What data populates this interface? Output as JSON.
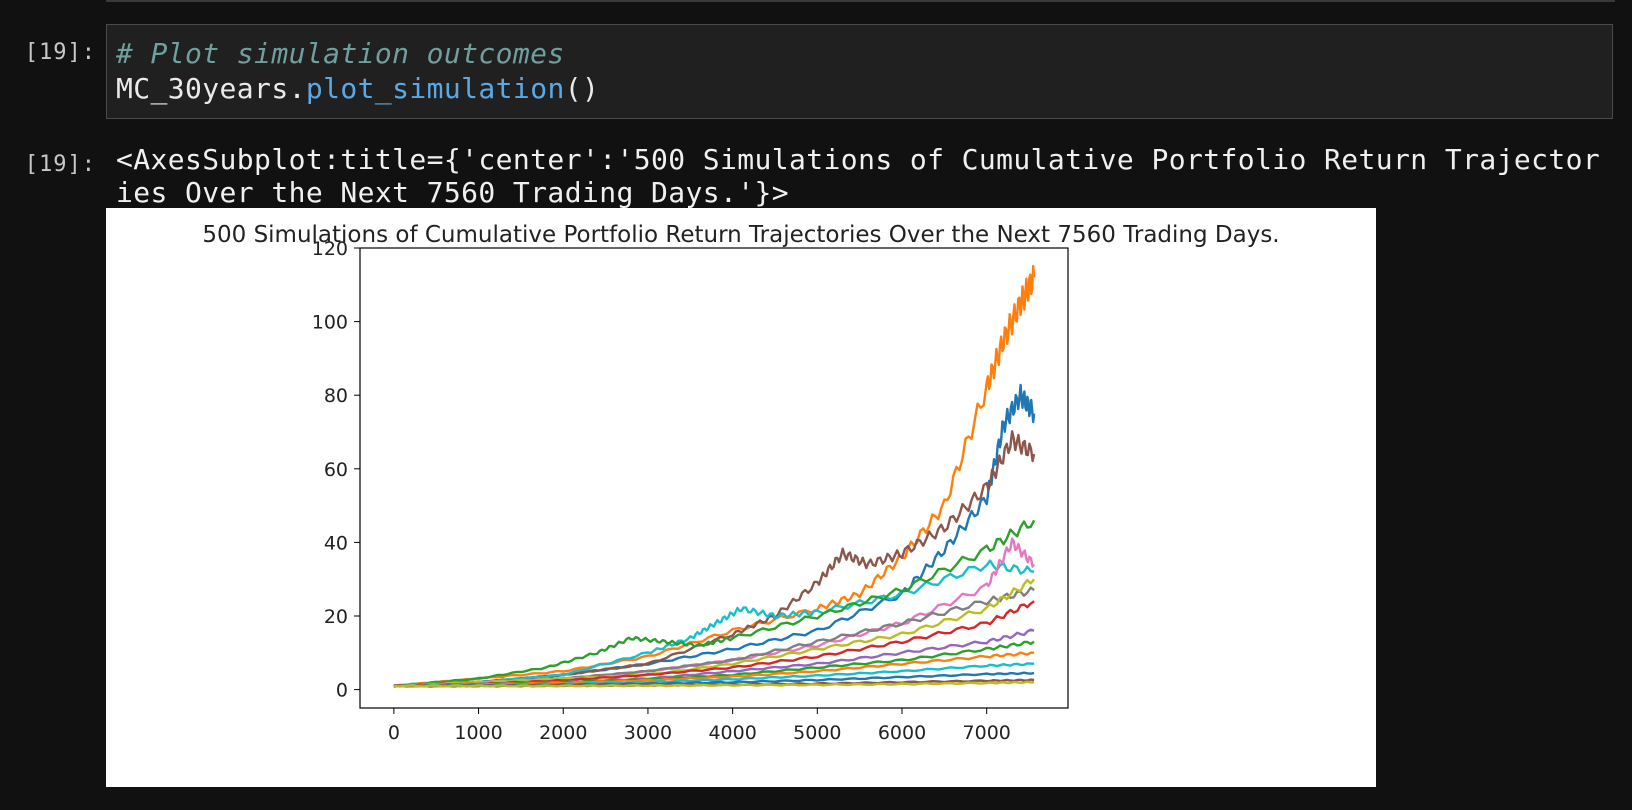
{
  "notebook": {
    "input_cell": {
      "prompt": "[19]:",
      "comment": "# Plot simulation outcomes",
      "object_name": "MC_30years",
      "dot": ".",
      "method_name": "plot_simulation",
      "call_parens": "()"
    },
    "output_cell": {
      "prompt": "[19]:",
      "repr_line1": "<AxesSubplot:title={'center':'500 Simulations of Cumulative Portfolio Return Trajector",
      "repr_line2": "ies Over the Next 7560 Trading Days.'}>"
    }
  },
  "colors": {
    "background": "#111111",
    "cell_background": "#202020",
    "comment": "#6f9f9f",
    "method": "#5aa9e6",
    "series_palette": [
      "#1f77b4",
      "#ff7f0e",
      "#2ca02c",
      "#d62728",
      "#9467bd",
      "#8c564b",
      "#e377c2",
      "#7f7f7f",
      "#bcbd22",
      "#17becf"
    ]
  },
  "chart_data": {
    "type": "line",
    "title": "500 Simulations of Cumulative Portfolio Return Trajectories Over the Next 7560 Trading Days.",
    "xlabel": "",
    "ylabel": "",
    "xlim": [
      -400,
      7960
    ],
    "ylim": [
      -5,
      120
    ],
    "x_ticks": [
      0,
      1000,
      2000,
      3000,
      4000,
      5000,
      6000,
      7000
    ],
    "y_ticks": [
      0,
      20,
      40,
      60,
      80,
      100,
      120
    ],
    "grid": false,
    "legend": "none",
    "series_count": 500,
    "series": [
      {
        "color_index": 1,
        "x": [
          0,
          1000,
          2000,
          3000,
          4000,
          5000,
          5500,
          6000,
          6500,
          7000,
          7200,
          7400,
          7560
        ],
        "values": [
          1,
          3,
          5,
          9,
          16,
          22,
          26,
          36,
          50,
          82,
          95,
          105,
          112
        ]
      },
      {
        "color_index": 0,
        "x": [
          0,
          1000,
          2000,
          3000,
          4000,
          5000,
          6000,
          6500,
          7000,
          7200,
          7400,
          7560
        ],
        "values": [
          1,
          2,
          4,
          7,
          11,
          16,
          26,
          38,
          52,
          72,
          80,
          75
        ]
      },
      {
        "color_index": 5,
        "x": [
          0,
          1000,
          2000,
          3000,
          4000,
          4500,
          5000,
          5300,
          5600,
          6000,
          6500,
          7000,
          7300,
          7560
        ],
        "values": [
          1,
          2,
          4,
          7,
          15,
          20,
          29,
          37,
          34,
          37,
          44,
          55,
          68,
          64
        ]
      },
      {
        "color_index": 9,
        "x": [
          0,
          1000,
          2000,
          3000,
          3500,
          3800,
          4100,
          4500,
          5000,
          6000,
          7000,
          7560
        ],
        "values": [
          1,
          2,
          4,
          10,
          14,
          18,
          22,
          20,
          21,
          26,
          34,
          32
        ]
      },
      {
        "color_index": 2,
        "x": [
          0,
          1000,
          1800,
          2400,
          2800,
          3200,
          3600,
          4000,
          5000,
          6000,
          7000,
          7560
        ],
        "values": [
          1,
          3,
          6,
          10,
          14,
          13,
          12,
          14,
          20,
          27,
          38,
          46
        ]
      },
      {
        "color_index": 6,
        "x": [
          0,
          1000,
          2000,
          3000,
          4000,
          5000,
          6000,
          7000,
          7300,
          7560
        ],
        "values": [
          1,
          2,
          3,
          5,
          8,
          12,
          18,
          28,
          40,
          34
        ]
      },
      {
        "color_index": 7,
        "x": [
          0,
          1000,
          2000,
          3000,
          4000,
          5000,
          6000,
          7000,
          7560
        ],
        "values": [
          1,
          2,
          3,
          5,
          8,
          13,
          18,
          24,
          27
        ]
      },
      {
        "color_index": 8,
        "x": [
          0,
          1000,
          2000,
          3000,
          4000,
          5000,
          6000,
          7000,
          7560
        ],
        "values": [
          1,
          2,
          3,
          4,
          7,
          11,
          15,
          22,
          30
        ]
      },
      {
        "color_index": 3,
        "x": [
          0,
          1000,
          2000,
          3000,
          4000,
          5000,
          6000,
          7000,
          7560
        ],
        "values": [
          1,
          1.5,
          2.5,
          4,
          6,
          9,
          13,
          18,
          24
        ]
      },
      {
        "color_index": 4,
        "x": [
          0,
          1000,
          2000,
          3000,
          4000,
          5000,
          6000,
          7000,
          7560
        ],
        "values": [
          1,
          1.5,
          2,
          3,
          5,
          7,
          10,
          13,
          16
        ]
      },
      {
        "color_index": 2,
        "x": [
          0,
          1000,
          2000,
          3000,
          4000,
          5000,
          6000,
          7000,
          7560
        ],
        "values": [
          1,
          1.4,
          2,
          2.8,
          4,
          6,
          8,
          11,
          13
        ]
      },
      {
        "color_index": 1,
        "x": [
          0,
          1000,
          2000,
          3000,
          4000,
          5000,
          6000,
          7000,
          7560
        ],
        "values": [
          1,
          1.3,
          1.8,
          2.5,
          3.5,
          5,
          7,
          9,
          10
        ]
      },
      {
        "color_index": 9,
        "x": [
          0,
          1000,
          2000,
          3000,
          4000,
          5000,
          6000,
          7000,
          7560
        ],
        "values": [
          1,
          1.2,
          1.5,
          2,
          2.8,
          3.8,
          5,
          6.5,
          7
        ]
      },
      {
        "color_index": 0,
        "x": [
          0,
          1000,
          2000,
          3000,
          4000,
          5000,
          6000,
          7000,
          7560
        ],
        "values": [
          1,
          1.1,
          1.3,
          1.6,
          2,
          2.6,
          3.4,
          4.2,
          4.5
        ]
      },
      {
        "color_index": 5,
        "x": [
          0,
          1000,
          2000,
          3000,
          4000,
          5000,
          6000,
          7000,
          7560
        ],
        "values": [
          1,
          1,
          1.1,
          1.2,
          1.4,
          1.6,
          2,
          2.4,
          2.6
        ]
      },
      {
        "color_index": 8,
        "x": [
          0,
          1000,
          2000,
          3000,
          4000,
          5000,
          6000,
          7000,
          7560
        ],
        "values": [
          1,
          1,
          1,
          1.1,
          1.2,
          1.3,
          1.5,
          1.8,
          2
        ]
      }
    ]
  }
}
